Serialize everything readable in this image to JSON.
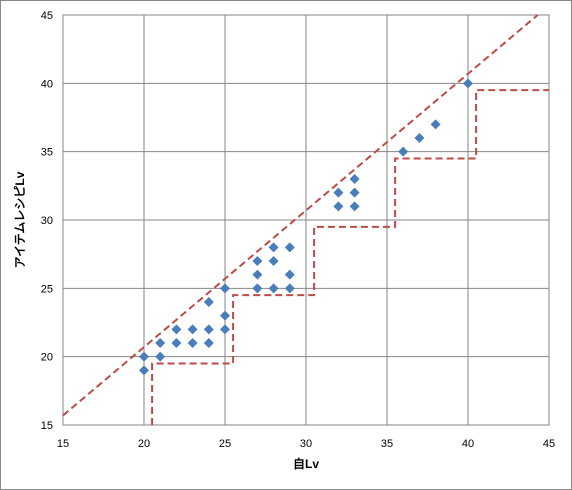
{
  "chart_data": {
    "type": "scatter",
    "x_label": "自Lv",
    "y_label": "アイテムレシピLv",
    "xlim": [
      15,
      45
    ],
    "ylim": [
      15,
      45
    ],
    "xticks": [
      15,
      20,
      25,
      30,
      35,
      40,
      45
    ],
    "yticks": [
      15,
      20,
      25,
      30,
      35,
      40,
      45
    ],
    "grid": true,
    "series": [
      {
        "style": "markers",
        "color": "#4a7ebb",
        "x": [
          20,
          20,
          21,
          21,
          22,
          22,
          23,
          23,
          24,
          24,
          24,
          25,
          25,
          25,
          27,
          27,
          27,
          28,
          28,
          28,
          29,
          29,
          29,
          32,
          32,
          33,
          33,
          33,
          36,
          37,
          38,
          40
        ],
        "values": [
          20,
          19,
          21,
          20,
          22,
          21,
          22,
          21,
          24,
          22,
          21,
          25,
          23,
          22,
          27,
          26,
          25,
          28,
          27,
          25,
          28,
          26,
          25,
          32,
          31,
          33,
          32,
          31,
          35,
          36,
          37,
          40
        ]
      },
      {
        "style": "dashed-line",
        "color": "#be4b48",
        "x": [
          15,
          44.3
        ],
        "values": [
          15.7,
          45
        ]
      },
      {
        "style": "dashed-line",
        "color": "#be4b48",
        "x": [
          20.5,
          20.5,
          25.5,
          25.5,
          30.5,
          30.5,
          35.5,
          35.5,
          40.5,
          40.5,
          45
        ],
        "values": [
          15,
          19.5,
          19.5,
          24.5,
          24.5,
          29.5,
          29.5,
          34.5,
          34.5,
          39.5,
          39.5
        ]
      }
    ]
  }
}
